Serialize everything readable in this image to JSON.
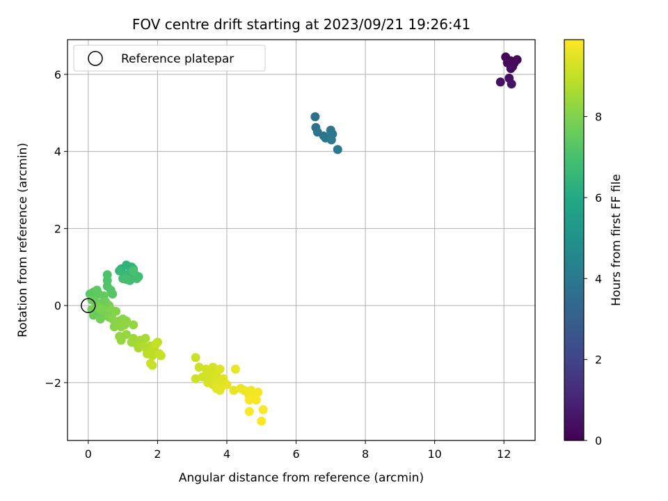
{
  "chart_data": {
    "type": "scatter",
    "title": "FOV centre drift starting at 2023/09/21 19:26:41",
    "xlabel": "Angular distance from reference (arcmin)",
    "ylabel": "Rotation from reference (arcmin)",
    "xlim": [
      -0.6,
      12.9
    ],
    "ylim": [
      -3.5,
      6.9
    ],
    "xticks": [
      0,
      2,
      4,
      6,
      8,
      10,
      12
    ],
    "yticks": [
      -2,
      0,
      2,
      4,
      6
    ],
    "xtick_labels": [
      "0",
      "2",
      "4",
      "6",
      "8",
      "10",
      "12"
    ],
    "ytick_labels": [
      "−2",
      "0",
      "2",
      "4",
      "6"
    ],
    "grid": true,
    "legend": {
      "position": "top-left",
      "entries": [
        {
          "label": "Reference platepar",
          "marker": "open-circle"
        }
      ]
    },
    "reference_point": {
      "x": 0,
      "y": 0
    },
    "colorbar": {
      "label": "Hours from first FF file",
      "colormap": "viridis",
      "range": [
        0,
        9.9
      ],
      "ticks": [
        0,
        2,
        4,
        6,
        8
      ],
      "tick_labels": [
        "0",
        "2",
        "4",
        "6",
        "8"
      ]
    },
    "series": [
      {
        "points": [
          {
            "x": 12.05,
            "y": 6.45,
            "c": 0.05
          },
          {
            "x": 12.2,
            "y": 6.35,
            "c": 0.1
          },
          {
            "x": 12.3,
            "y": 6.3,
            "c": 0.15
          },
          {
            "x": 12.38,
            "y": 6.38,
            "c": 0.2
          },
          {
            "x": 12.1,
            "y": 6.3,
            "c": 0.25
          },
          {
            "x": 12.25,
            "y": 6.2,
            "c": 0.3
          },
          {
            "x": 12.2,
            "y": 6.15,
            "c": 0.35
          },
          {
            "x": 12.15,
            "y": 5.9,
            "c": 0.4
          },
          {
            "x": 11.9,
            "y": 5.8,
            "c": 0.45
          },
          {
            "x": 12.22,
            "y": 5.75,
            "c": 0.5
          }
        ]
      },
      {
        "points": [
          {
            "x": 6.55,
            "y": 4.9,
            "c": 3.65
          },
          {
            "x": 6.57,
            "y": 4.62,
            "c": 3.7
          },
          {
            "x": 6.62,
            "y": 4.5,
            "c": 3.75
          },
          {
            "x": 6.8,
            "y": 4.4,
            "c": 3.8
          },
          {
            "x": 6.85,
            "y": 4.35,
            "c": 3.85
          },
          {
            "x": 7.0,
            "y": 4.55,
            "c": 3.9
          },
          {
            "x": 7.05,
            "y": 4.45,
            "c": 3.95
          },
          {
            "x": 7.02,
            "y": 4.3,
            "c": 4.0
          },
          {
            "x": 7.2,
            "y": 4.05,
            "c": 4.05
          }
        ]
      },
      {
        "points": [
          {
            "x": 0.95,
            "y": 0.95,
            "c": 6.3
          },
          {
            "x": 1.1,
            "y": 1.05,
            "c": 6.35
          },
          {
            "x": 1.25,
            "y": 1.0,
            "c": 6.4
          },
          {
            "x": 1.3,
            "y": 0.95,
            "c": 6.45
          },
          {
            "x": 1.2,
            "y": 0.85,
            "c": 6.5
          },
          {
            "x": 0.9,
            "y": 0.9,
            "c": 6.55
          },
          {
            "x": 1.05,
            "y": 0.8,
            "c": 6.6
          },
          {
            "x": 1.15,
            "y": 0.75,
            "c": 6.65
          },
          {
            "x": 1.35,
            "y": 0.8,
            "c": 6.7
          },
          {
            "x": 1.45,
            "y": 0.75,
            "c": 6.75
          },
          {
            "x": 1.0,
            "y": 0.7,
            "c": 6.8
          },
          {
            "x": 1.2,
            "y": 0.65,
            "c": 6.85
          },
          {
            "x": 1.4,
            "y": 0.7,
            "c": 6.9
          },
          {
            "x": 1.1,
            "y": 0.68,
            "c": 6.95
          },
          {
            "x": 1.3,
            "y": 0.9,
            "c": 7.0
          }
        ]
      },
      {
        "points": [
          {
            "x": 0.55,
            "y": 0.8,
            "c": 7.05
          },
          {
            "x": 0.55,
            "y": 0.65,
            "c": 7.1
          },
          {
            "x": 0.55,
            "y": 0.5,
            "c": 7.15
          },
          {
            "x": 0.65,
            "y": 0.4,
            "c": 7.2
          },
          {
            "x": 0.7,
            "y": 0.3,
            "c": 7.25
          },
          {
            "x": 0.05,
            "y": 0.3,
            "c": 7.3
          },
          {
            "x": 0.15,
            "y": 0.35,
            "c": 7.35
          },
          {
            "x": 0.25,
            "y": 0.4,
            "c": 7.4
          },
          {
            "x": 0.3,
            "y": 0.3,
            "c": 7.45
          },
          {
            "x": 0.45,
            "y": 0.25,
            "c": 7.5
          },
          {
            "x": 0.1,
            "y": 0.15,
            "c": 7.55
          },
          {
            "x": 0.2,
            "y": 0.1,
            "c": 7.6
          },
          {
            "x": 0.35,
            "y": 0.05,
            "c": 7.65
          },
          {
            "x": 0.5,
            "y": 0.1,
            "c": 7.7
          },
          {
            "x": 0.6,
            "y": 0.0,
            "c": 7.75
          },
          {
            "x": 0.1,
            "y": -0.1,
            "c": 7.8
          },
          {
            "x": 0.2,
            "y": -0.15,
            "c": 7.85
          },
          {
            "x": 0.3,
            "y": -0.05,
            "c": 7.9
          },
          {
            "x": 0.4,
            "y": -0.1,
            "c": 7.95
          },
          {
            "x": 0.5,
            "y": -0.2,
            "c": 8.0
          },
          {
            "x": 0.65,
            "y": -0.1,
            "c": 8.02
          },
          {
            "x": 0.8,
            "y": -0.15,
            "c": 8.05
          },
          {
            "x": 0.15,
            "y": -0.25,
            "c": 7.6
          },
          {
            "x": 0.35,
            "y": -0.3,
            "c": 7.7
          },
          {
            "x": 0.45,
            "y": -0.25,
            "c": 7.85
          },
          {
            "x": 0.6,
            "y": -0.3,
            "c": 7.95
          },
          {
            "x": 0.7,
            "y": -0.35,
            "c": 8.05
          },
          {
            "x": 0.9,
            "y": -0.4,
            "c": 8.1
          },
          {
            "x": 1.0,
            "y": -0.35,
            "c": 8.15
          },
          {
            "x": 1.1,
            "y": -0.4,
            "c": 8.2
          },
          {
            "x": 0.35,
            "y": -0.35,
            "c": 7.75
          },
          {
            "x": 0.75,
            "y": -0.55,
            "c": 8.1
          },
          {
            "x": 0.85,
            "y": -0.5,
            "c": 8.15
          },
          {
            "x": 0.95,
            "y": -0.55,
            "c": 8.2
          },
          {
            "x": 1.05,
            "y": -0.5,
            "c": 8.25
          },
          {
            "x": 1.3,
            "y": -0.5,
            "c": 8.3
          },
          {
            "x": 0.9,
            "y": -0.8,
            "c": 8.3
          },
          {
            "x": 0.95,
            "y": -0.9,
            "c": 8.35
          },
          {
            "x": 1.1,
            "y": -0.75,
            "c": 8.35
          }
        ]
      },
      {
        "points": [
          {
            "x": 1.3,
            "y": -0.85,
            "c": 8.4
          },
          {
            "x": 1.25,
            "y": -0.95,
            "c": 8.45
          },
          {
            "x": 1.4,
            "y": -1.0,
            "c": 8.5
          },
          {
            "x": 1.5,
            "y": -0.9,
            "c": 8.55
          },
          {
            "x": 1.65,
            "y": -0.85,
            "c": 8.6
          },
          {
            "x": 1.45,
            "y": -1.1,
            "c": 8.65
          },
          {
            "x": 1.6,
            "y": -1.05,
            "c": 8.7
          },
          {
            "x": 1.7,
            "y": -1.15,
            "c": 8.75
          },
          {
            "x": 1.8,
            "y": -1.05,
            "c": 8.8
          },
          {
            "x": 1.9,
            "y": -1.1,
            "c": 8.85
          },
          {
            "x": 1.7,
            "y": -1.25,
            "c": 8.9
          },
          {
            "x": 1.85,
            "y": -1.3,
            "c": 8.9
          },
          {
            "x": 2.0,
            "y": -0.95,
            "c": 8.95
          },
          {
            "x": 1.95,
            "y": -1.0,
            "c": 9.0
          },
          {
            "x": 2.05,
            "y": -1.25,
            "c": 9.0
          },
          {
            "x": 2.1,
            "y": -1.3,
            "c": 9.05
          },
          {
            "x": 1.85,
            "y": -1.55,
            "c": 9.05
          },
          {
            "x": 1.8,
            "y": -1.5,
            "c": 9.1
          }
        ]
      },
      {
        "points": [
          {
            "x": 3.1,
            "y": -1.35,
            "c": 9.1
          },
          {
            "x": 3.2,
            "y": -1.6,
            "c": 9.15
          },
          {
            "x": 3.1,
            "y": -1.9,
            "c": 9.15
          },
          {
            "x": 3.3,
            "y": -1.85,
            "c": 9.2
          },
          {
            "x": 3.4,
            "y": -1.65,
            "c": 9.2
          },
          {
            "x": 3.5,
            "y": -1.75,
            "c": 9.25
          },
          {
            "x": 3.6,
            "y": -1.6,
            "c": 9.25
          },
          {
            "x": 3.55,
            "y": -1.9,
            "c": 9.3
          },
          {
            "x": 3.45,
            "y": -2.0,
            "c": 9.3
          },
          {
            "x": 3.6,
            "y": -2.05,
            "c": 9.35
          },
          {
            "x": 3.7,
            "y": -1.8,
            "c": 9.35
          },
          {
            "x": 3.8,
            "y": -1.65,
            "c": 9.4
          },
          {
            "x": 3.75,
            "y": -2.0,
            "c": 9.4
          },
          {
            "x": 3.85,
            "y": -2.1,
            "c": 9.45
          },
          {
            "x": 3.9,
            "y": -1.9,
            "c": 9.45
          },
          {
            "x": 3.7,
            "y": -2.15,
            "c": 9.5
          },
          {
            "x": 3.8,
            "y": -2.2,
            "c": 9.5
          },
          {
            "x": 4.0,
            "y": -2.05,
            "c": 9.55
          },
          {
            "x": 4.2,
            "y": -2.2,
            "c": 9.55
          },
          {
            "x": 4.25,
            "y": -1.65,
            "c": 9.6
          }
        ]
      },
      {
        "points": [
          {
            "x": 4.4,
            "y": -2.15,
            "c": 9.6
          },
          {
            "x": 4.5,
            "y": -2.2,
            "c": 9.65
          },
          {
            "x": 4.6,
            "y": -2.25,
            "c": 9.65
          },
          {
            "x": 4.7,
            "y": -2.2,
            "c": 9.7
          },
          {
            "x": 4.65,
            "y": -2.35,
            "c": 9.7
          },
          {
            "x": 4.8,
            "y": -2.3,
            "c": 9.75
          },
          {
            "x": 4.9,
            "y": -2.25,
            "c": 9.75
          },
          {
            "x": 4.65,
            "y": -2.45,
            "c": 9.8
          },
          {
            "x": 4.85,
            "y": -2.45,
            "c": 9.8
          },
          {
            "x": 4.65,
            "y": -2.75,
            "c": 9.85
          },
          {
            "x": 5.05,
            "y": -2.7,
            "c": 9.85
          },
          {
            "x": 5.0,
            "y": -3.0,
            "c": 9.9
          }
        ]
      }
    ]
  }
}
